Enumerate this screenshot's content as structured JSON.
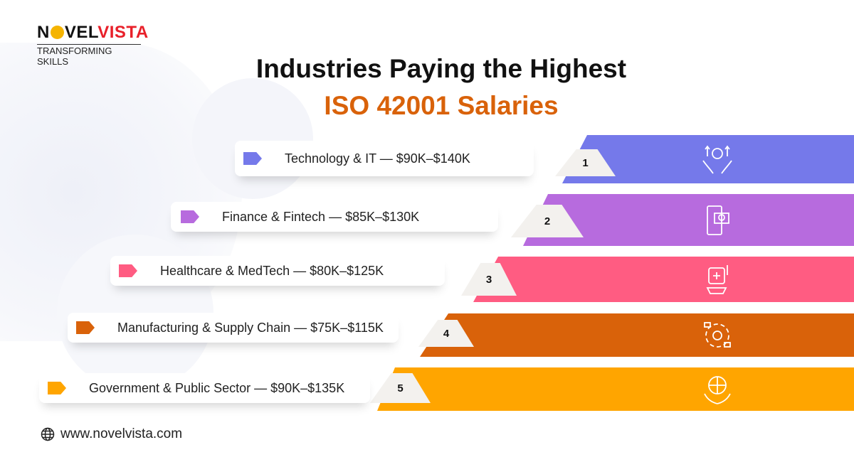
{
  "logo": {
    "brand_a": "N",
    "brand_b": "VEL",
    "brand_c": "VISTA",
    "tagline": "TRANSFORMING SKILLS"
  },
  "title": {
    "line1": "Industries Paying the Highest",
    "line2": "ISO 42001 Salaries"
  },
  "items": [
    {
      "rank": "1",
      "label": "Technology & IT — $90K–$140K",
      "color": "#7579ea",
      "icon": "hands-gear-tech-icon"
    },
    {
      "rank": "2",
      "label": "Finance & Fintech — $85K–$130K",
      "color": "#b76bde",
      "icon": "mobile-payment-icon"
    },
    {
      "rank": "3",
      "label": "Healthcare & MedTech — $80K–$125K",
      "color": "#ff5c82",
      "icon": "medical-device-icon"
    },
    {
      "rank": "4",
      "label": "Manufacturing & Supply Chain — $75K–$115K",
      "color": "#d9620a",
      "icon": "supply-chain-icon"
    },
    {
      "rank": "5",
      "label": "Government & Public Sector — $90K–$135K",
      "color": "#ffa500",
      "icon": "public-sector-globe-icon"
    }
  ],
  "footer": {
    "website": "www.novelvista.com",
    "icon": "globe-icon"
  }
}
